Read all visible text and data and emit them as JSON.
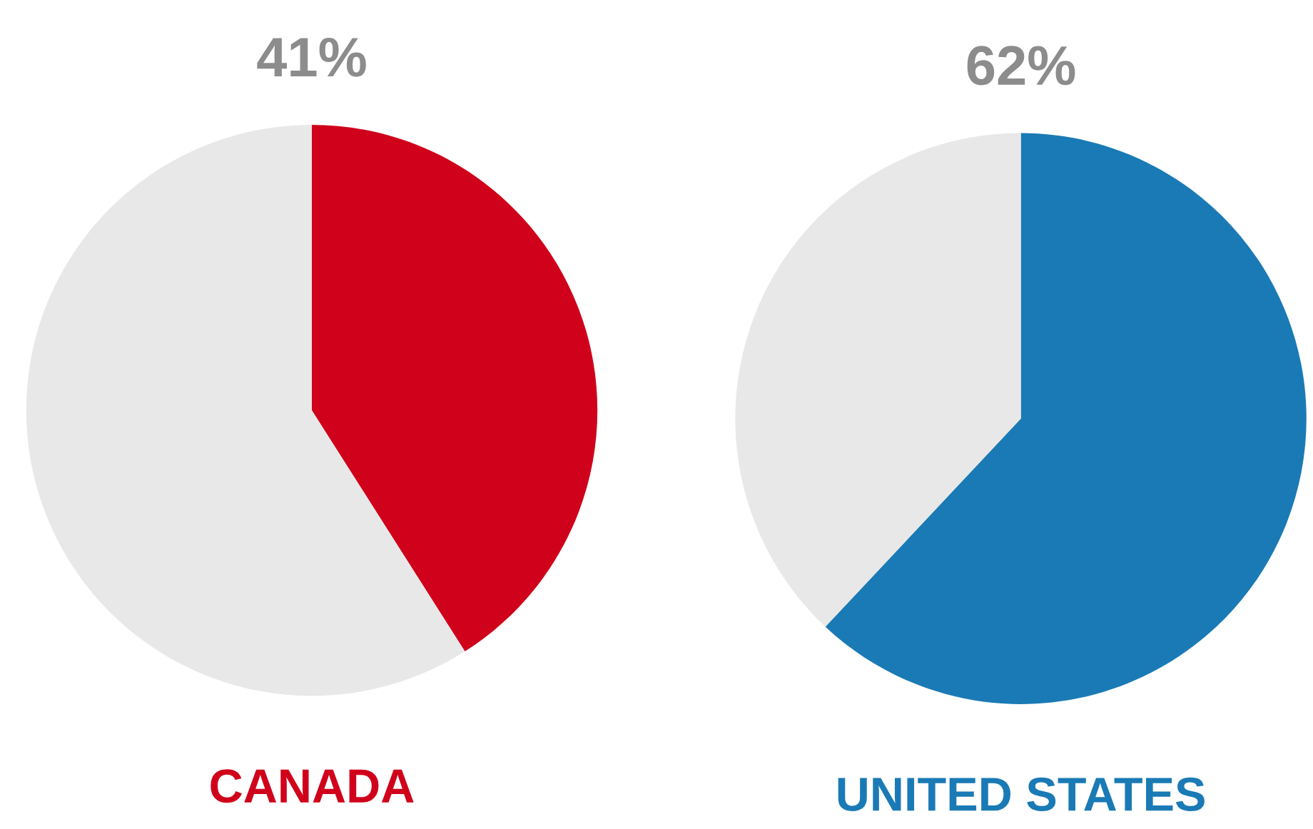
{
  "chart_data": [
    {
      "type": "pie",
      "categories": [
        null,
        null
      ],
      "values": [
        41,
        59
      ],
      "colors": [
        "#d0021b",
        "#e8e8e8"
      ],
      "value_labels": [
        "41%",
        null
      ],
      "xlabel": "CANADA"
    },
    {
      "type": "pie",
      "categories": [
        null,
        null
      ],
      "values": [
        62,
        38
      ],
      "colors": [
        "#1a7ab5",
        "#e8e8e8"
      ],
      "value_labels": [
        "62%",
        null
      ],
      "xlabel": "UNITED STATES"
    }
  ]
}
